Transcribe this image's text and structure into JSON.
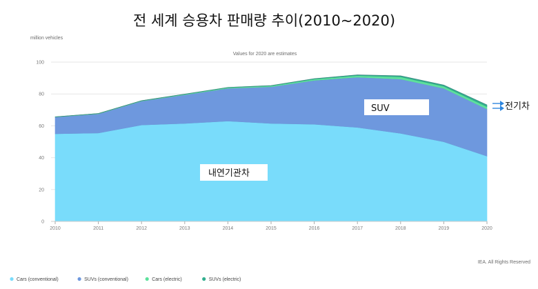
{
  "chart_data": {
    "type": "area",
    "title": "전 세계 승용차 판매량 추이(2010~2020)",
    "subtitle": "Values for 2020 are estimates",
    "ylabel": "million vehicles",
    "xlabel": "",
    "x": [
      "2010",
      "2011",
      "2012",
      "2013",
      "2014",
      "2015",
      "2016",
      "2017",
      "2018",
      "2019",
      "2020"
    ],
    "ylim": [
      0,
      100
    ],
    "yticks": [
      0,
      20,
      40,
      60,
      80,
      100
    ],
    "stacked": true,
    "grid": true,
    "legend_position": "bottom-left",
    "series": [
      {
        "name": "Cars (conventional)",
        "color": "#79DCFB",
        "values": [
          55,
          55.5,
          60.5,
          61.5,
          63,
          61.5,
          61,
          59,
          55.3,
          50,
          41
        ]
      },
      {
        "name": "SUVs (conventional)",
        "color": "#6E98DE",
        "values": [
          10.5,
          12,
          15,
          18,
          20.5,
          23,
          27.5,
          31.5,
          34,
          33.5,
          29.5
        ]
      },
      {
        "name": "Cars (electric)",
        "color": "#5DE19C",
        "values": [
          0.1,
          0.2,
          0.2,
          0.3,
          0.5,
          0.6,
          0.8,
          1.0,
          1.4,
          1.3,
          1.5
        ]
      },
      {
        "name": "SUVs (electric)",
        "color": "#33AE8F",
        "values": [
          0.05,
          0.05,
          0.1,
          0.1,
          0.1,
          0.2,
          0.3,
          0.5,
          0.7,
          0.8,
          1.1
        ]
      }
    ],
    "annotations": {
      "ice": "내연기관차",
      "suv": "SUV",
      "ev": "전기차"
    },
    "source": "IEA. All Rights Reserved"
  },
  "colors": {
    "ev_arrow": "#2E86DE",
    "grid": "#e6e6e6",
    "axis": "#cccccc"
  }
}
